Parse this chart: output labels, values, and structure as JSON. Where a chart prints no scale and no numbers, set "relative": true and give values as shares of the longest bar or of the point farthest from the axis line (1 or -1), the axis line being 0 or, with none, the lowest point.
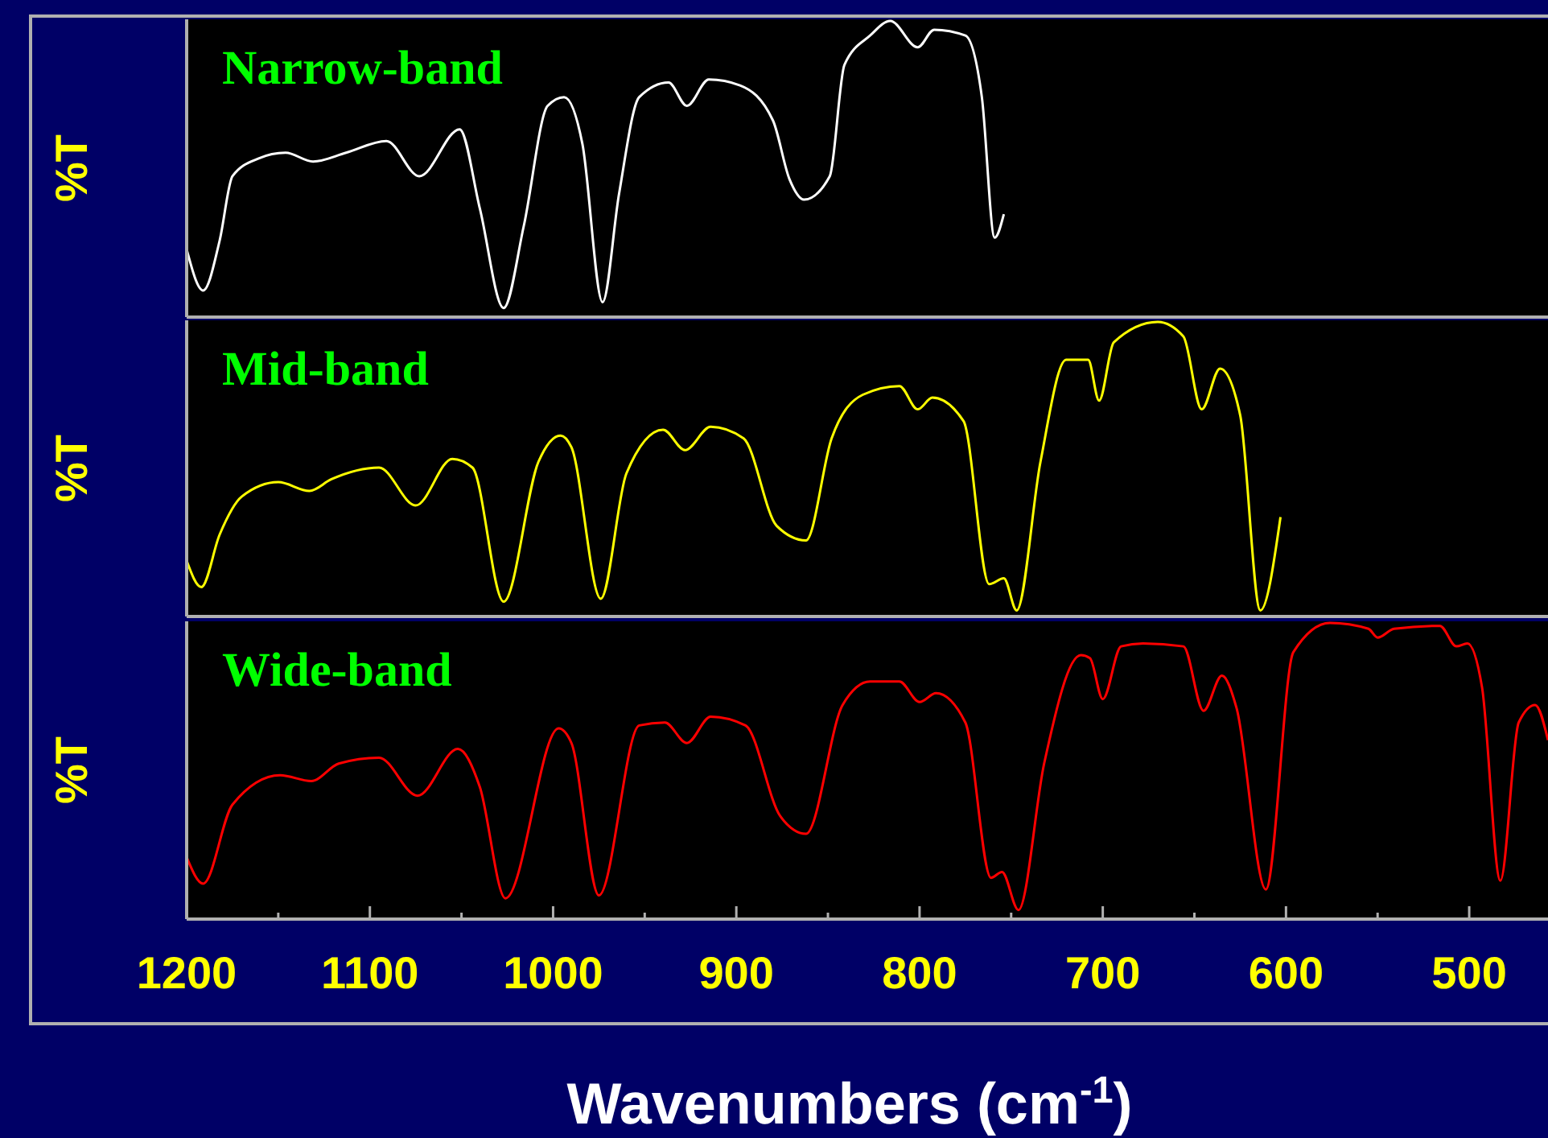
{
  "chart_data": [
    {
      "type": "line",
      "relative": true,
      "ylabel": "%T",
      "xlim": [
        1200,
        457
      ],
      "tick_labels": false,
      "grid": false,
      "marker": "none",
      "line_style": "solid",
      "series": [
        {
          "name": "Narrow-band",
          "color": "#ffffff",
          "x": [
            1200,
            1191,
            1182,
            1175,
            1161,
            1146,
            1131,
            1113,
            1091,
            1073,
            1051,
            1040,
            1027,
            1016,
            1003,
            994,
            984,
            973,
            964,
            953,
            937,
            927,
            915,
            898,
            880,
            871,
            863,
            849,
            841,
            827,
            816,
            801,
            792,
            775,
            766,
            759,
            754
          ],
          "values": [
            0.22,
            0.08,
            0.25,
            0.47,
            0.53,
            0.55,
            0.52,
            0.55,
            0.59,
            0.47,
            0.63,
            0.36,
            0.02,
            0.3,
            0.71,
            0.74,
            0.58,
            0.04,
            0.41,
            0.74,
            0.79,
            0.71,
            0.8,
            0.78,
            0.66,
            0.46,
            0.39,
            0.47,
            0.85,
            0.95,
            1,
            0.91,
            0.97,
            0.95,
            0.74,
            0.26,
            0.34
          ]
        }
      ]
    },
    {
      "type": "line",
      "relative": true,
      "ylabel": "%T",
      "xlim": [
        1200,
        457
      ],
      "tick_labels": false,
      "grid": false,
      "marker": "none",
      "line_style": "solid",
      "series": [
        {
          "name": "Mid-band",
          "color": "#ffff00",
          "x": [
            1200,
            1192,
            1182,
            1170,
            1150,
            1133,
            1121,
            1095,
            1075,
            1055,
            1044,
            1027,
            1008,
            996,
            990,
            974,
            960,
            940,
            928,
            914,
            896,
            878,
            862,
            848,
            831,
            811,
            801,
            793,
            776,
            762,
            754,
            747,
            734,
            720,
            708,
            702,
            694,
            670,
            656,
            646,
            636,
            625,
            614,
            603
          ],
          "values": [
            0.18,
            0.09,
            0.27,
            0.4,
            0.45,
            0.42,
            0.46,
            0.5,
            0.37,
            0.53,
            0.5,
            0.04,
            0.52,
            0.61,
            0.57,
            0.05,
            0.48,
            0.63,
            0.56,
            0.64,
            0.6,
            0.3,
            0.25,
            0.6,
            0.75,
            0.78,
            0.7,
            0.74,
            0.66,
            0.1,
            0.12,
            0.01,
            0.52,
            0.87,
            0.87,
            0.73,
            0.93,
            1,
            0.95,
            0.7,
            0.84,
            0.68,
            0.01,
            0.33
          ]
        }
      ]
    },
    {
      "type": "line",
      "relative": true,
      "ylabel": "%T",
      "xlabel": "Wavenumbers (cm$^{-1}$)",
      "xlim": [
        1200,
        457
      ],
      "tick_labels": "x",
      "grid": false,
      "marker": "none",
      "line_style": "solid",
      "xticks": [
        1200,
        {
          "value": 1150,
          "label": null
        },
        1100,
        {
          "value": 1050,
          "label": null
        },
        1000,
        {
          "value": 950,
          "label": null
        },
        900,
        {
          "value": 850,
          "label": null
        },
        800,
        {
          "value": 750,
          "label": null
        },
        700,
        {
          "value": 650,
          "label": null
        },
        600,
        {
          "value": 550,
          "label": null
        },
        500
      ],
      "series": [
        {
          "name": "Wide-band",
          "color": "#ff0000",
          "x": [
            1200,
            1191,
            1175,
            1149,
            1132,
            1117,
            1095,
            1074,
            1052,
            1040,
            1026,
            997,
            990,
            975,
            953,
            939,
            927,
            914,
            895,
            876,
            862,
            842,
            827,
            811,
            800,
            791,
            775,
            761,
            755,
            746,
            732,
            712,
            707,
            700,
            690,
            678,
            656,
            645,
            635,
            627,
            611,
            596,
            576,
            555,
            550,
            541,
            516,
            507,
            501,
            493,
            483,
            473,
            464,
            457
          ],
          "values": [
            0.2,
            0.11,
            0.38,
            0.48,
            0.46,
            0.52,
            0.54,
            0.41,
            0.57,
            0.44,
            0.06,
            0.64,
            0.59,
            0.07,
            0.65,
            0.66,
            0.59,
            0.68,
            0.65,
            0.34,
            0.28,
            0.72,
            0.8,
            0.8,
            0.73,
            0.76,
            0.66,
            0.13,
            0.15,
            0.02,
            0.52,
            0.89,
            0.88,
            0.74,
            0.92,
            0.93,
            0.92,
            0.7,
            0.82,
            0.71,
            0.09,
            0.9,
            1,
            0.98,
            0.95,
            0.98,
            0.99,
            0.92,
            0.93,
            0.78,
            0.12,
            0.66,
            0.72,
            0.6
          ]
        }
      ]
    }
  ]
}
